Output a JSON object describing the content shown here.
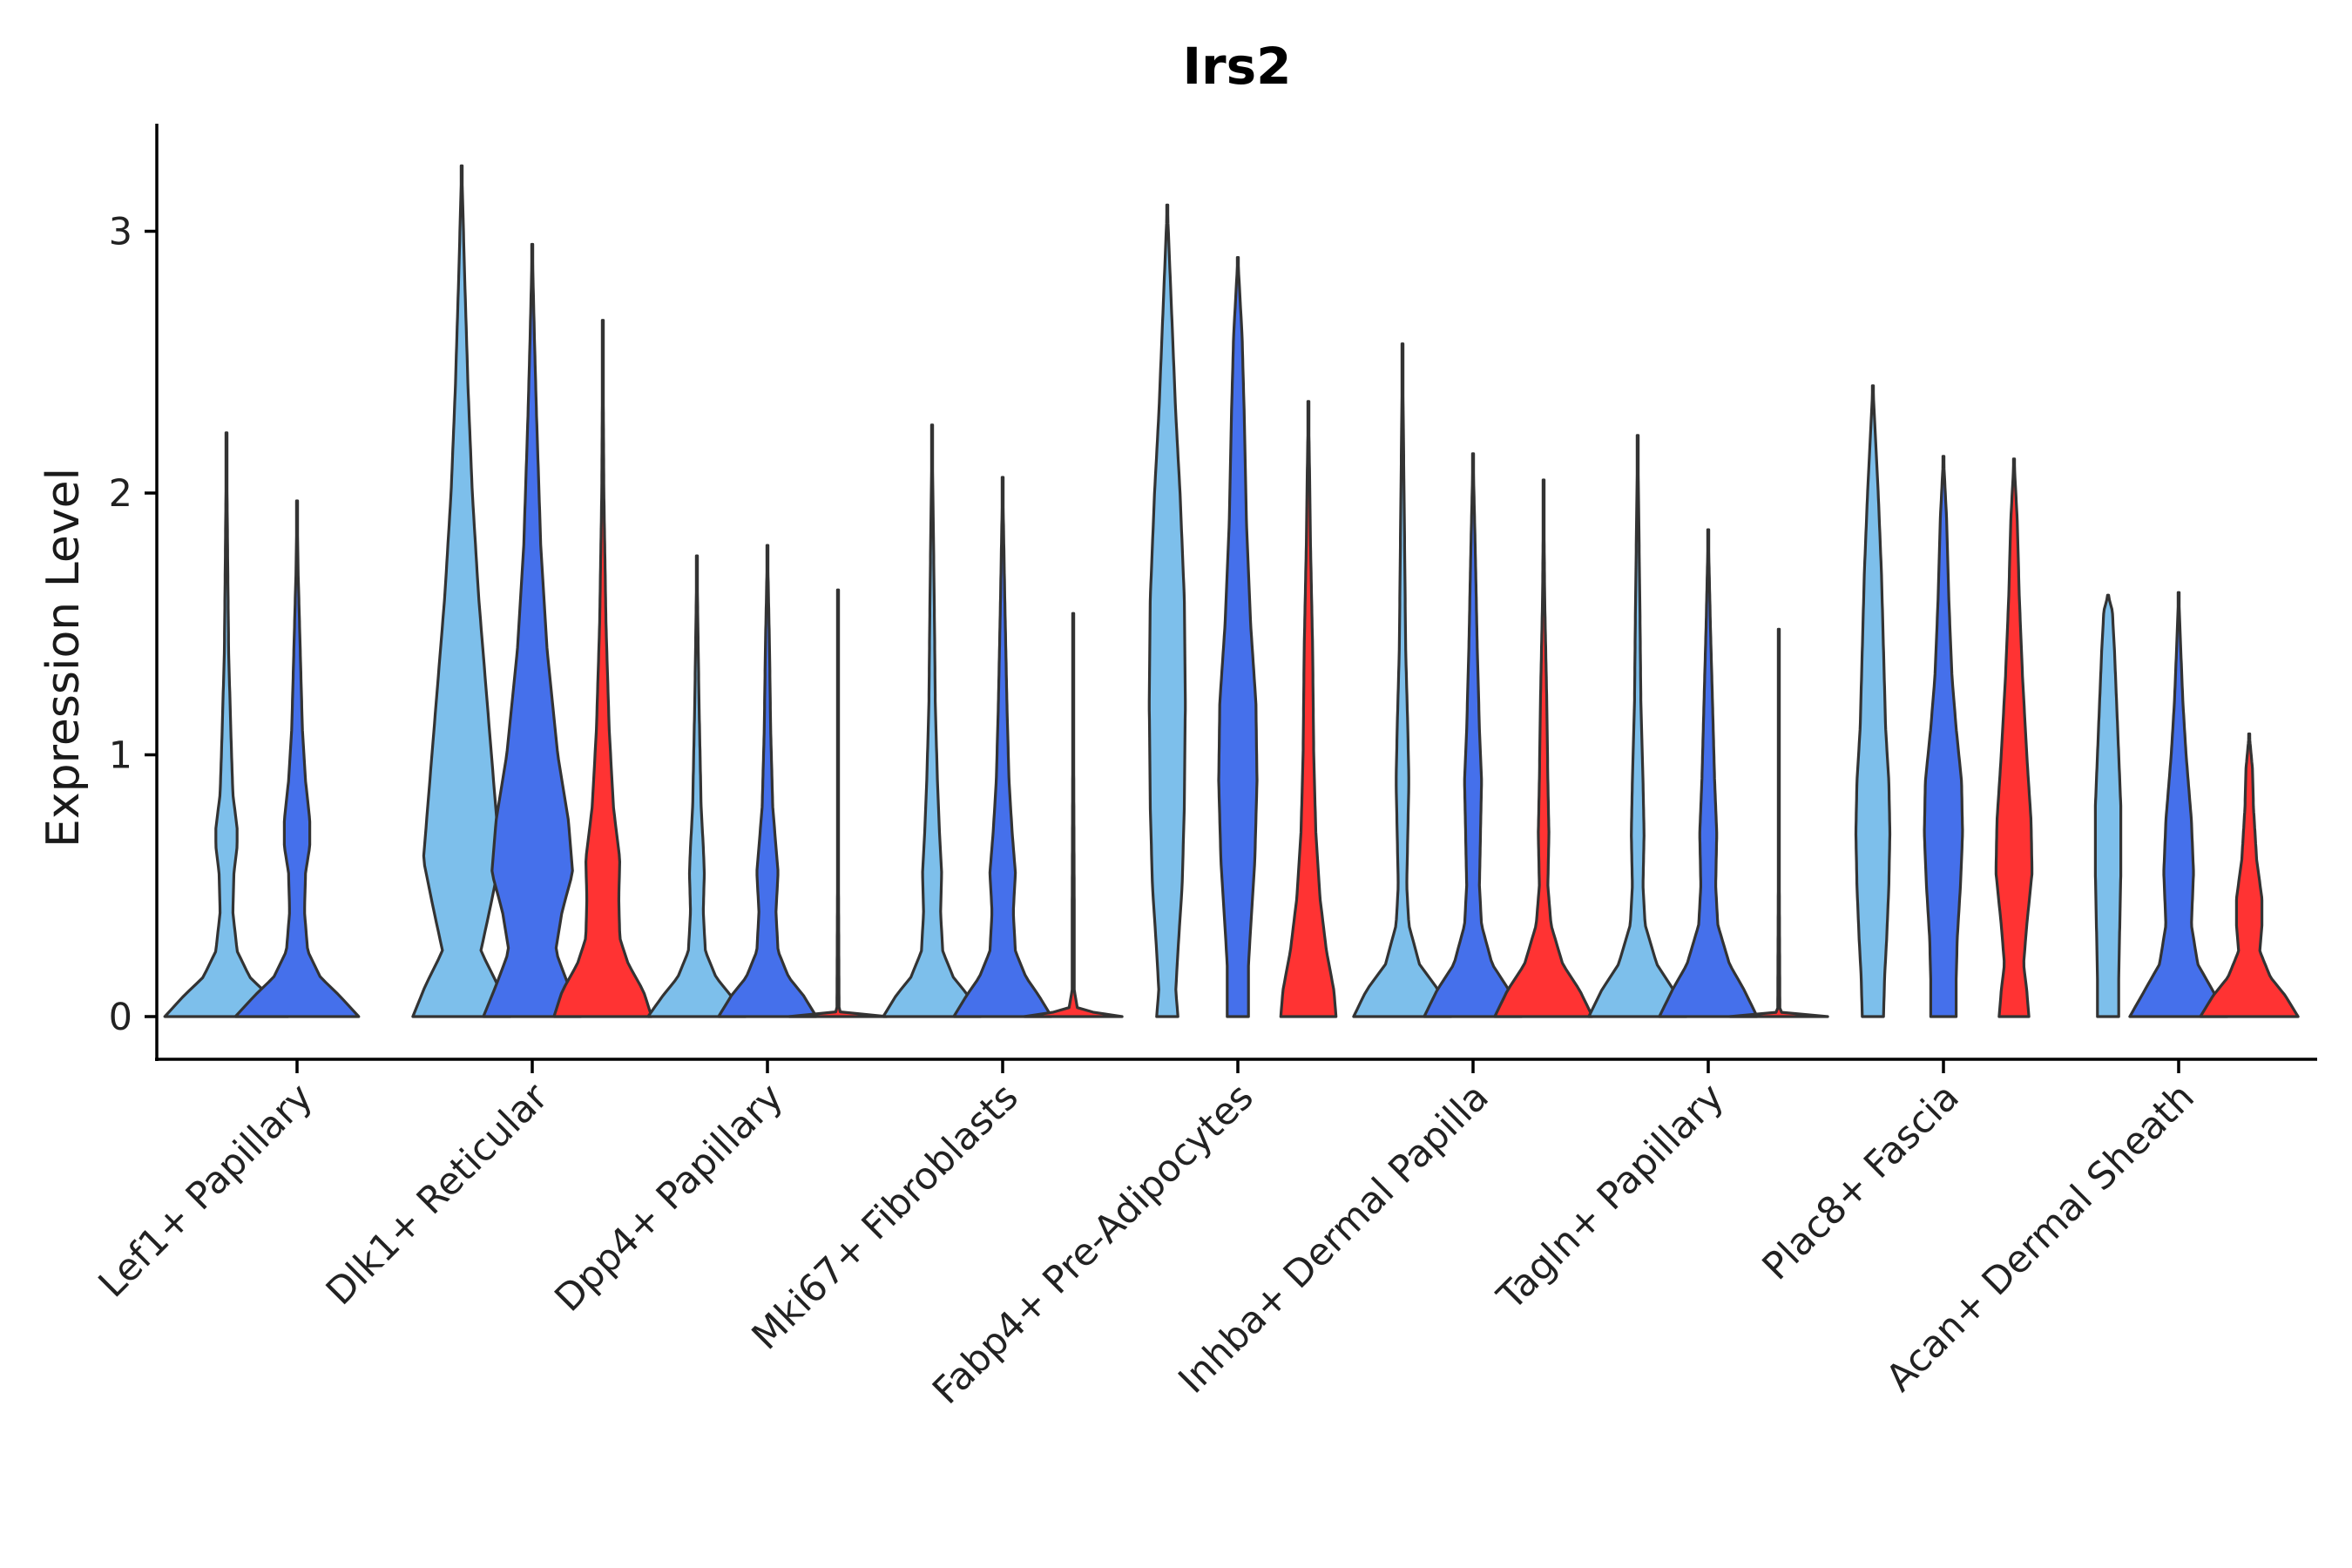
{
  "chart_data": {
    "type": "violin",
    "title": "Irs2",
    "xlabel": "",
    "ylabel": "Expression Level",
    "ylim": [
      -0.16,
      3.4
    ],
    "yticks": [
      0,
      1,
      2,
      3
    ],
    "colors": {
      "group1": "#7DBFEB",
      "group2": "#4570EB",
      "group3": "#FF3333"
    },
    "categories": [
      "Lef1+ Papillary",
      "Dlk1+ Reticular",
      "Dpp4+ Papillary",
      "Mki67+ Fibroblasts",
      "Fabp4+ Pre-Adipocytes",
      "Inhba+ Dermal Papilla",
      "Tagln+ Papillary",
      "Plac8+ Fascia",
      "Acan+ Dermal Sheath"
    ],
    "violins": [
      {
        "category": 0,
        "group": 0,
        "max": 2.23,
        "profile": [
          [
            0,
            0.58
          ],
          [
            0.08,
            0.4
          ],
          [
            0.15,
            0.22
          ],
          [
            0.25,
            0.1
          ],
          [
            0.4,
            0.06
          ],
          [
            0.55,
            0.07
          ],
          [
            0.65,
            0.1
          ],
          [
            0.72,
            0.1
          ],
          [
            0.85,
            0.06
          ],
          [
            1.1,
            0.04
          ],
          [
            1.4,
            0.02
          ],
          [
            1.8,
            0.01
          ],
          [
            2.23,
            0.0
          ]
        ]
      },
      {
        "category": 0,
        "group": 1,
        "max": 1.97,
        "profile": [
          [
            0,
            0.58
          ],
          [
            0.08,
            0.4
          ],
          [
            0.15,
            0.22
          ],
          [
            0.25,
            0.1
          ],
          [
            0.4,
            0.07
          ],
          [
            0.55,
            0.08
          ],
          [
            0.65,
            0.12
          ],
          [
            0.75,
            0.12
          ],
          [
            0.9,
            0.08
          ],
          [
            1.1,
            0.05
          ],
          [
            1.4,
            0.03
          ],
          [
            1.7,
            0.01
          ],
          [
            1.97,
            0.0
          ]
        ]
      },
      {
        "category": 1,
        "group": 0,
        "max": 3.25,
        "profile": [
          [
            0,
            0.46
          ],
          [
            0.12,
            0.34
          ],
          [
            0.25,
            0.18
          ],
          [
            0.4,
            0.26
          ],
          [
            0.6,
            0.36
          ],
          [
            0.9,
            0.3
          ],
          [
            1.2,
            0.24
          ],
          [
            1.6,
            0.16
          ],
          [
            2.0,
            0.1
          ],
          [
            2.4,
            0.06
          ],
          [
            2.8,
            0.03
          ],
          [
            3.25,
            0.0
          ]
        ]
      },
      {
        "category": 1,
        "group": 1,
        "max": 2.95,
        "profile": [
          [
            0,
            0.46
          ],
          [
            0.12,
            0.34
          ],
          [
            0.25,
            0.22
          ],
          [
            0.4,
            0.28
          ],
          [
            0.55,
            0.38
          ],
          [
            0.75,
            0.34
          ],
          [
            1.0,
            0.24
          ],
          [
            1.4,
            0.14
          ],
          [
            1.8,
            0.08
          ],
          [
            2.3,
            0.04
          ],
          [
            2.6,
            0.02
          ],
          [
            2.95,
            0.0
          ]
        ]
      },
      {
        "category": 1,
        "group": 2,
        "max": 2.66,
        "profile": [
          [
            0,
            0.46
          ],
          [
            0.1,
            0.38
          ],
          [
            0.2,
            0.24
          ],
          [
            0.3,
            0.16
          ],
          [
            0.45,
            0.15
          ],
          [
            0.6,
            0.16
          ],
          [
            0.8,
            0.1
          ],
          [
            1.1,
            0.06
          ],
          [
            1.5,
            0.03
          ],
          [
            2.0,
            0.01
          ],
          [
            2.66,
            0.0
          ]
        ]
      },
      {
        "category": 2,
        "group": 0,
        "max": 1.76,
        "profile": [
          [
            0,
            0.46
          ],
          [
            0.08,
            0.32
          ],
          [
            0.15,
            0.18
          ],
          [
            0.25,
            0.08
          ],
          [
            0.4,
            0.06
          ],
          [
            0.55,
            0.07
          ],
          [
            0.65,
            0.06
          ],
          [
            0.8,
            0.04
          ],
          [
            1.2,
            0.02
          ],
          [
            1.76,
            0.0
          ]
        ]
      },
      {
        "category": 2,
        "group": 1,
        "max": 1.8,
        "profile": [
          [
            0,
            0.46
          ],
          [
            0.08,
            0.34
          ],
          [
            0.15,
            0.2
          ],
          [
            0.25,
            0.1
          ],
          [
            0.4,
            0.08
          ],
          [
            0.55,
            0.1
          ],
          [
            0.65,
            0.08
          ],
          [
            0.8,
            0.05
          ],
          [
            1.1,
            0.03
          ],
          [
            1.4,
            0.02
          ],
          [
            1.8,
            0.0
          ]
        ]
      },
      {
        "category": 2,
        "group": 2,
        "max": 1.63,
        "profile": [
          [
            0,
            0.46
          ],
          [
            0.005,
            0.1
          ],
          [
            0.02,
            0.01
          ],
          [
            0.5,
            0.005
          ],
          [
            1.63,
            0.0
          ]
        ]
      },
      {
        "category": 3,
        "group": 0,
        "max": 2.26,
        "profile": [
          [
            0,
            0.46
          ],
          [
            0.08,
            0.34
          ],
          [
            0.15,
            0.2
          ],
          [
            0.25,
            0.1
          ],
          [
            0.4,
            0.08
          ],
          [
            0.55,
            0.09
          ],
          [
            0.7,
            0.07
          ],
          [
            0.9,
            0.05
          ],
          [
            1.2,
            0.03
          ],
          [
            1.6,
            0.02
          ],
          [
            2.26,
            0.0
          ]
        ]
      },
      {
        "category": 3,
        "group": 1,
        "max": 2.06,
        "profile": [
          [
            0,
            0.46
          ],
          [
            0.08,
            0.34
          ],
          [
            0.15,
            0.22
          ],
          [
            0.25,
            0.12
          ],
          [
            0.4,
            0.1
          ],
          [
            0.55,
            0.12
          ],
          [
            0.7,
            0.09
          ],
          [
            0.9,
            0.06
          ],
          [
            1.2,
            0.04
          ],
          [
            1.6,
            0.02
          ],
          [
            2.06,
            0.0
          ]
        ]
      },
      {
        "category": 3,
        "group": 2,
        "max": 1.54,
        "profile": [
          [
            0,
            0.46
          ],
          [
            0.01,
            0.3
          ],
          [
            0.02,
            0.14
          ],
          [
            0.03,
            0.04
          ],
          [
            0.1,
            0.01
          ],
          [
            0.4,
            0.01
          ],
          [
            0.6,
            0.008
          ],
          [
            1.54,
            0.0
          ]
        ]
      },
      {
        "category": 4,
        "group": 0,
        "max": 3.1,
        "profile": [
          [
            0,
            0.1
          ],
          [
            0.1,
            0.08
          ],
          [
            0.25,
            0.1
          ],
          [
            0.5,
            0.14
          ],
          [
            0.8,
            0.16
          ],
          [
            1.2,
            0.17
          ],
          [
            1.6,
            0.16
          ],
          [
            2.0,
            0.12
          ],
          [
            2.3,
            0.08
          ],
          [
            2.6,
            0.05
          ],
          [
            2.9,
            0.02
          ],
          [
            3.1,
            0.0
          ]
        ]
      },
      {
        "category": 4,
        "group": 1,
        "max": 2.9,
        "profile": [
          [
            0,
            0.1
          ],
          [
            0.2,
            0.1
          ],
          [
            0.4,
            0.13
          ],
          [
            0.6,
            0.16
          ],
          [
            0.9,
            0.18
          ],
          [
            1.2,
            0.17
          ],
          [
            1.5,
            0.12
          ],
          [
            1.9,
            0.08
          ],
          [
            2.3,
            0.06
          ],
          [
            2.6,
            0.04
          ],
          [
            2.9,
            0.0
          ]
        ]
      },
      {
        "category": 4,
        "group": 2,
        "max": 2.35,
        "profile": [
          [
            0,
            0.26
          ],
          [
            0.1,
            0.24
          ],
          [
            0.25,
            0.17
          ],
          [
            0.45,
            0.11
          ],
          [
            0.7,
            0.07
          ],
          [
            1.0,
            0.05
          ],
          [
            1.4,
            0.04
          ],
          [
            1.8,
            0.02
          ],
          [
            2.1,
            0.01
          ],
          [
            2.35,
            0.0
          ]
        ]
      },
      {
        "category": 5,
        "group": 0,
        "max": 2.57,
        "profile": [
          [
            0,
            0.46
          ],
          [
            0.1,
            0.34
          ],
          [
            0.2,
            0.16
          ],
          [
            0.35,
            0.06
          ],
          [
            0.5,
            0.04
          ],
          [
            0.7,
            0.05
          ],
          [
            0.9,
            0.06
          ],
          [
            1.1,
            0.05
          ],
          [
            1.4,
            0.03
          ],
          [
            1.8,
            0.02
          ],
          [
            2.57,
            0.0
          ]
        ]
      },
      {
        "category": 5,
        "group": 1,
        "max": 2.15,
        "profile": [
          [
            0,
            0.46
          ],
          [
            0.1,
            0.34
          ],
          [
            0.2,
            0.18
          ],
          [
            0.35,
            0.08
          ],
          [
            0.5,
            0.06
          ],
          [
            0.7,
            0.07
          ],
          [
            0.9,
            0.08
          ],
          [
            1.1,
            0.06
          ],
          [
            1.4,
            0.04
          ],
          [
            1.8,
            0.02
          ],
          [
            2.15,
            0.0
          ]
        ]
      },
      {
        "category": 5,
        "group": 2,
        "max": 2.05,
        "profile": [
          [
            0,
            0.46
          ],
          [
            0.1,
            0.34
          ],
          [
            0.2,
            0.18
          ],
          [
            0.35,
            0.07
          ],
          [
            0.5,
            0.04
          ],
          [
            0.7,
            0.05
          ],
          [
            0.9,
            0.04
          ],
          [
            1.2,
            0.03
          ],
          [
            1.6,
            0.01
          ],
          [
            2.05,
            0.0
          ]
        ]
      },
      {
        "category": 6,
        "group": 0,
        "max": 2.22,
        "profile": [
          [
            0,
            0.46
          ],
          [
            0.1,
            0.34
          ],
          [
            0.2,
            0.18
          ],
          [
            0.35,
            0.07
          ],
          [
            0.5,
            0.05
          ],
          [
            0.7,
            0.06
          ],
          [
            0.9,
            0.05
          ],
          [
            1.2,
            0.03
          ],
          [
            1.6,
            0.02
          ],
          [
            2.22,
            0.0
          ]
        ]
      },
      {
        "category": 6,
        "group": 1,
        "max": 1.86,
        "profile": [
          [
            0,
            0.46
          ],
          [
            0.1,
            0.34
          ],
          [
            0.2,
            0.2
          ],
          [
            0.35,
            0.09
          ],
          [
            0.5,
            0.07
          ],
          [
            0.7,
            0.08
          ],
          [
            0.9,
            0.06
          ],
          [
            1.2,
            0.04
          ],
          [
            1.5,
            0.02
          ],
          [
            1.86,
            0.0
          ]
        ]
      },
      {
        "category": 6,
        "group": 2,
        "max": 1.48,
        "profile": [
          [
            0,
            0.46
          ],
          [
            0.005,
            0.08
          ],
          [
            0.02,
            0.01
          ],
          [
            0.5,
            0.005
          ],
          [
            1.48,
            0.0
          ]
        ]
      },
      {
        "category": 7,
        "group": 0,
        "max": 2.41,
        "profile": [
          [
            0,
            0.1
          ],
          [
            0.15,
            0.11
          ],
          [
            0.3,
            0.13
          ],
          [
            0.5,
            0.15
          ],
          [
            0.7,
            0.16
          ],
          [
            0.9,
            0.15
          ],
          [
            1.1,
            0.12
          ],
          [
            1.4,
            0.1
          ],
          [
            1.7,
            0.08
          ],
          [
            2.0,
            0.05
          ],
          [
            2.25,
            0.02
          ],
          [
            2.41,
            0.0
          ]
        ]
      },
      {
        "category": 7,
        "group": 1,
        "max": 2.14,
        "profile": [
          [
            0,
            0.12
          ],
          [
            0.15,
            0.12
          ],
          [
            0.3,
            0.13
          ],
          [
            0.5,
            0.16
          ],
          [
            0.7,
            0.18
          ],
          [
            0.9,
            0.17
          ],
          [
            1.1,
            0.12
          ],
          [
            1.3,
            0.08
          ],
          [
            1.6,
            0.05
          ],
          [
            1.9,
            0.03
          ],
          [
            2.14,
            0.0
          ]
        ]
      },
      {
        "category": 7,
        "group": 2,
        "max": 2.13,
        "profile": [
          [
            0,
            0.14
          ],
          [
            0.1,
            0.12
          ],
          [
            0.2,
            0.09
          ],
          [
            0.35,
            0.12
          ],
          [
            0.55,
            0.17
          ],
          [
            0.75,
            0.16
          ],
          [
            1.0,
            0.12
          ],
          [
            1.3,
            0.08
          ],
          [
            1.6,
            0.05
          ],
          [
            1.9,
            0.03
          ],
          [
            2.13,
            0.0
          ]
        ]
      },
      {
        "category": 8,
        "group": 0,
        "max": 1.61,
        "profile": [
          [
            0,
            0.1
          ],
          [
            0.15,
            0.1
          ],
          [
            0.35,
            0.11
          ],
          [
            0.55,
            0.12
          ],
          [
            0.8,
            0.12
          ],
          [
            1.0,
            0.1
          ],
          [
            1.2,
            0.08
          ],
          [
            1.4,
            0.06
          ],
          [
            1.55,
            0.04
          ],
          [
            1.61,
            0.0
          ]
        ]
      },
      {
        "category": 8,
        "group": 1,
        "max": 1.62,
        "profile": [
          [
            0,
            0.46
          ],
          [
            0.1,
            0.32
          ],
          [
            0.2,
            0.18
          ],
          [
            0.35,
            0.12
          ],
          [
            0.55,
            0.14
          ],
          [
            0.75,
            0.12
          ],
          [
            1.0,
            0.07
          ],
          [
            1.2,
            0.04
          ],
          [
            1.4,
            0.02
          ],
          [
            1.62,
            0.0
          ]
        ]
      },
      {
        "category": 8,
        "group": 2,
        "max": 1.08,
        "profile": [
          [
            0,
            0.46
          ],
          [
            0.08,
            0.34
          ],
          [
            0.15,
            0.2
          ],
          [
            0.25,
            0.1
          ],
          [
            0.35,
            0.12
          ],
          [
            0.45,
            0.12
          ],
          [
            0.6,
            0.07
          ],
          [
            0.8,
            0.04
          ],
          [
            0.95,
            0.03
          ],
          [
            1.08,
            0.0
          ]
        ]
      }
    ]
  }
}
